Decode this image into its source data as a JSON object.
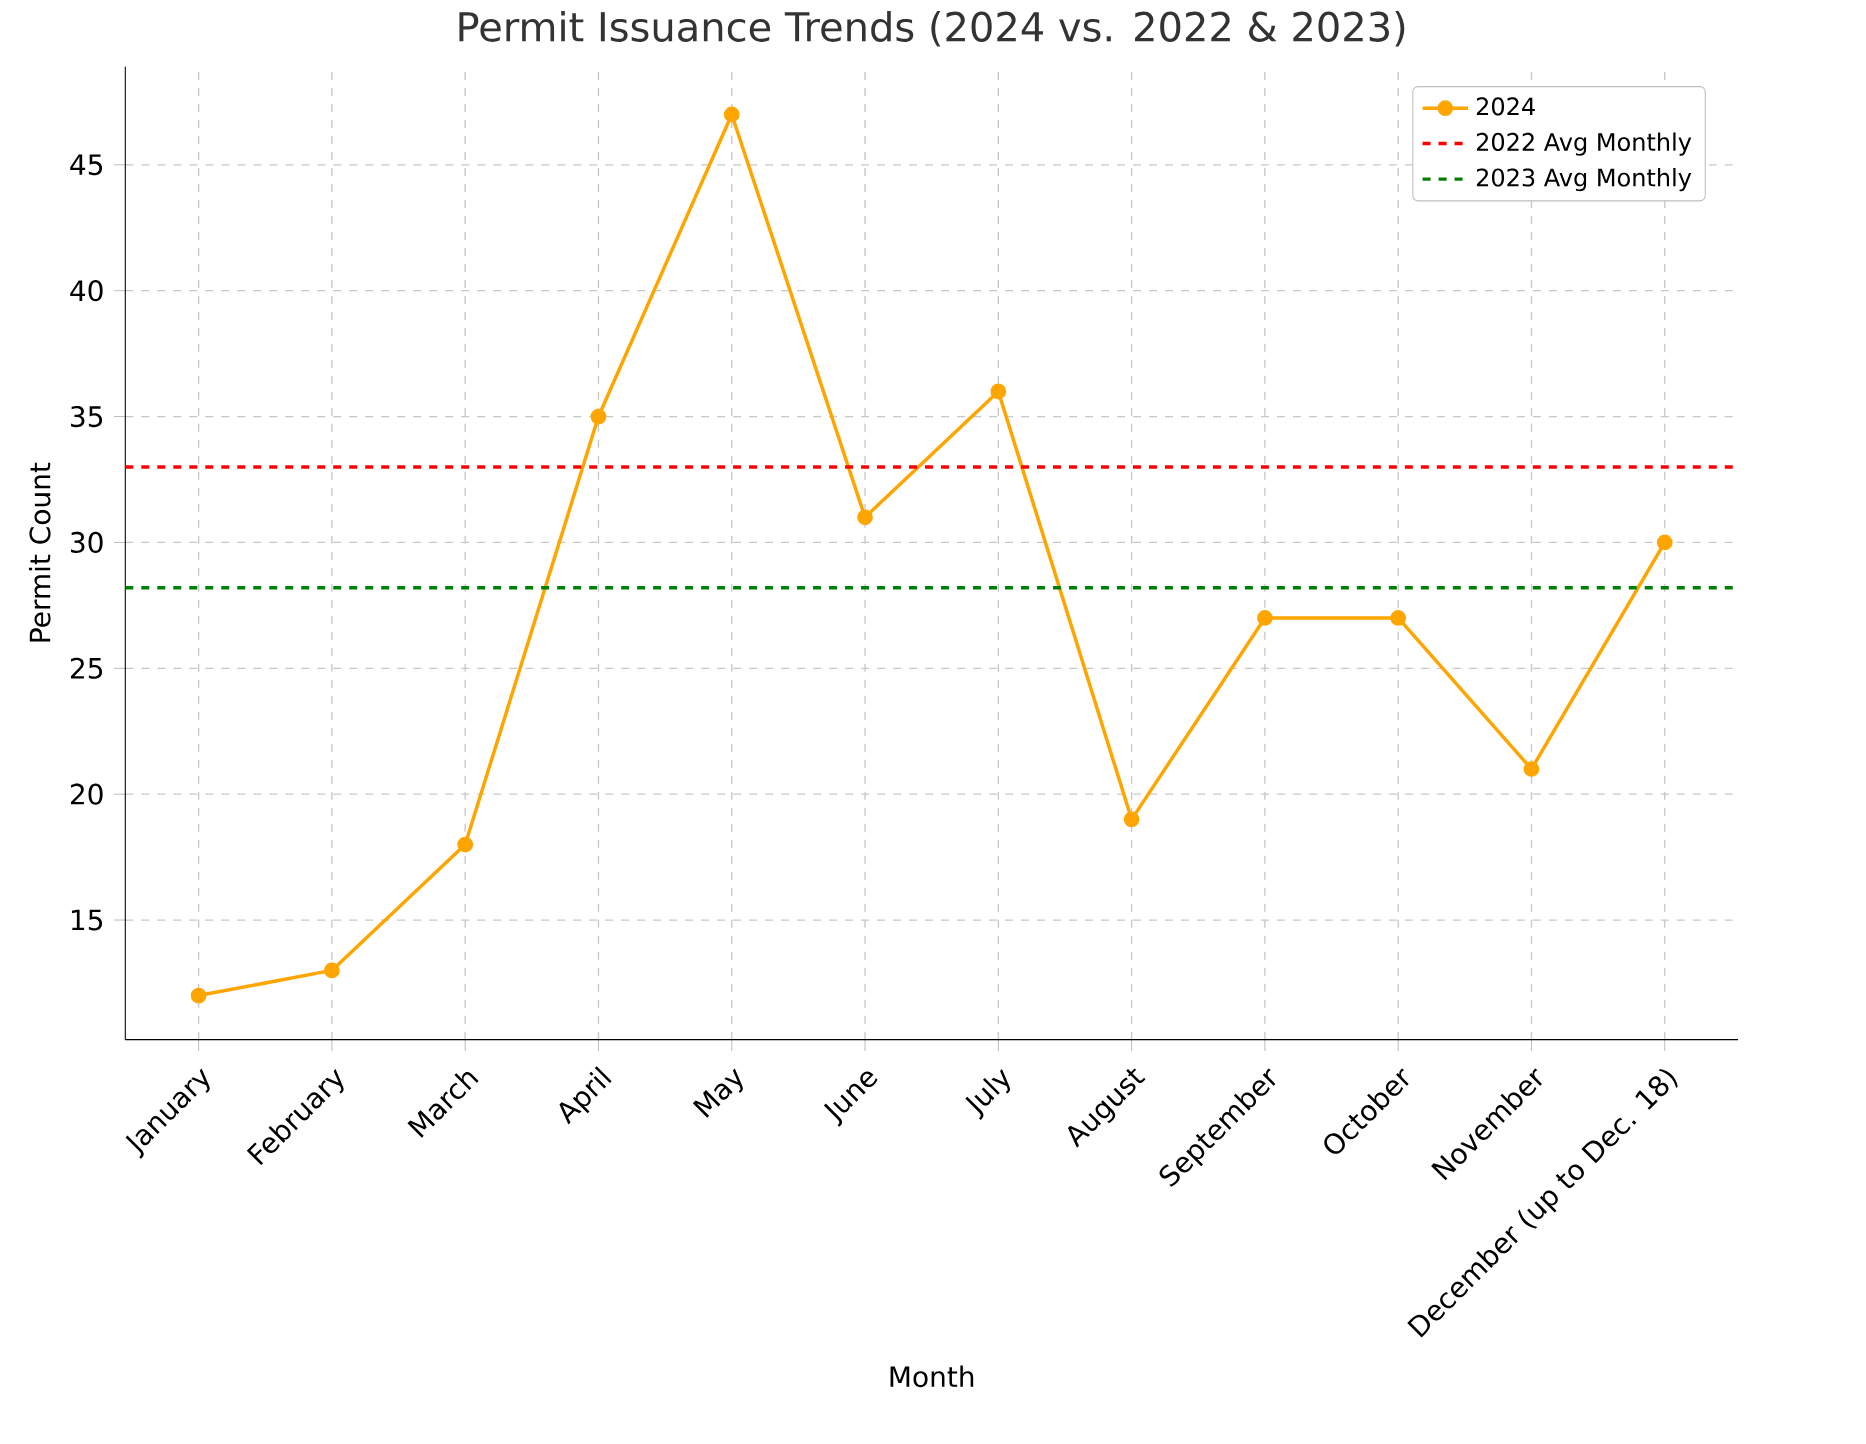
{
  "chart_data": {
    "type": "line",
    "title": "Permit Issuance Trends (2024 vs. 2022 & 2023)",
    "xlabel": "Month",
    "ylabel": "Permit Count",
    "categories": [
      "January",
      "February",
      "March",
      "April",
      "May",
      "June",
      "July",
      "August",
      "September",
      "October",
      "November",
      "December (up to Dec. 18)"
    ],
    "series": [
      {
        "name": "2024",
        "color": "#ffa500",
        "values": [
          12,
          13,
          18,
          35,
          47,
          31,
          36,
          19,
          27,
          27,
          21,
          30
        ]
      }
    ],
    "ref_lines": [
      {
        "axis": "y",
        "value": 33.0,
        "label": "2022 Avg Monthly",
        "color": "#ff0000",
        "line_style": "dashed"
      },
      {
        "axis": "y",
        "value": 28.2,
        "label": "2023 Avg Monthly",
        "color": "#008000",
        "line_style": "dashed"
      }
    ],
    "ylim": [
      10.25,
      48.9
    ],
    "yticks": [
      15,
      20,
      25,
      30,
      35,
      40,
      45
    ],
    "grid": true,
    "legend": "top right",
    "marker": "circle",
    "line_style": "solid"
  }
}
